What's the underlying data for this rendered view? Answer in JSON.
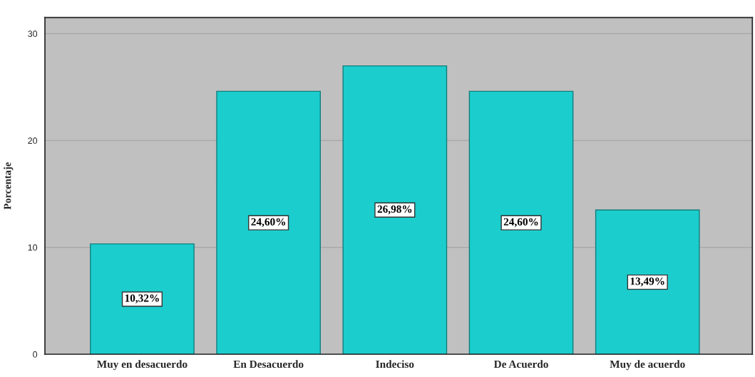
{
  "chart_data": {
    "type": "bar",
    "categories": [
      "Muy en desacuerdo",
      "En Desacuerdo",
      "Indeciso",
      "De Acuerdo",
      "Muy de acuerdo"
    ],
    "values": [
      10.32,
      24.6,
      26.98,
      24.6,
      13.49
    ],
    "value_labels": [
      "10,32%",
      "24,60%",
      "26,98%",
      "24,60%",
      "13,49%"
    ],
    "color": "#1ccdcd",
    "ylabel": "Porcentaje",
    "ylim": [
      0,
      31.5
    ],
    "yticks": [
      0,
      10,
      20,
      30
    ],
    "grid": "y"
  }
}
